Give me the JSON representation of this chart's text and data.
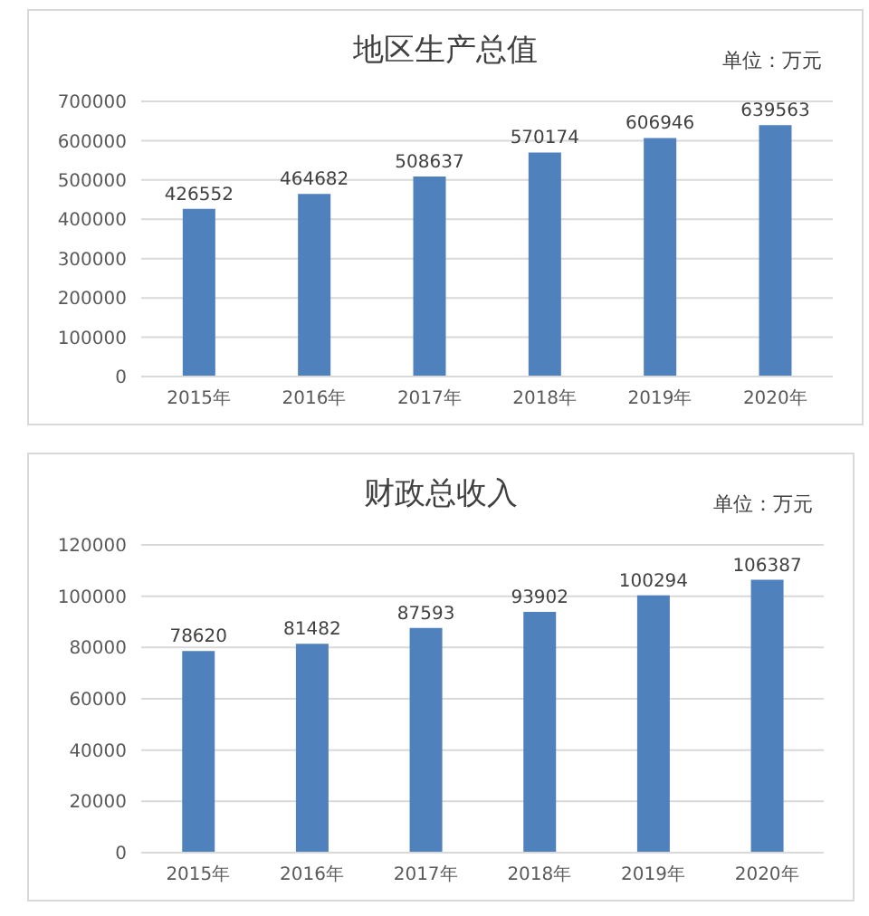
{
  "chart_data": [
    {
      "type": "bar",
      "title": "地区生产总值",
      "annotations": [
        "单位：万元"
      ],
      "categories": [
        "2015年",
        "2016年",
        "2017年",
        "2018年",
        "2019年",
        "2020年"
      ],
      "values": [
        426552,
        464682,
        508637,
        570174,
        606946,
        639563
      ],
      "color": "#4f81bd",
      "ylim": [
        0,
        700000
      ],
      "yticks": [
        0,
        100000,
        200000,
        300000,
        400000,
        500000,
        600000,
        700000
      ],
      "grid": "y",
      "data_labels": true
    },
    {
      "type": "bar",
      "title": "财政总收入",
      "annotations": [
        "单位：万元"
      ],
      "categories": [
        "2015年",
        "2016年",
        "2017年",
        "2018年",
        "2019年",
        "2020年"
      ],
      "values": [
        78620,
        81482,
        87593,
        93902,
        100294,
        106387
      ],
      "color": "#4f81bd",
      "ylim": [
        0,
        120000
      ],
      "yticks": [
        0,
        20000,
        40000,
        60000,
        80000,
        100000,
        120000
      ],
      "grid": "y",
      "data_labels": true
    }
  ]
}
